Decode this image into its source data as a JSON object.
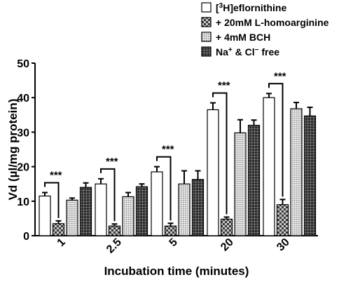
{
  "chart_data": {
    "type": "bar",
    "xlabel": "Incubation time (minutes)",
    "ylabel": "Vd (µl/mg protein)",
    "ylim": [
      0,
      50
    ],
    "yticks": [
      "0",
      "10",
      "20",
      "30",
      "40",
      "50"
    ],
    "categories": [
      "1",
      "2.5",
      "5",
      "20",
      "30"
    ],
    "significance_label": "***",
    "legend_position": "top-right",
    "series": [
      {
        "name": "[³H]eflornithine",
        "legend_parts": [
          "[",
          "3",
          "H]eflornithine"
        ],
        "pattern": "open",
        "values": [
          11.5,
          15.0,
          18.5,
          36.5,
          40.0
        ],
        "errors": [
          1.0,
          1.5,
          1.5,
          2.0,
          1.2
        ]
      },
      {
        "name": "+ 20mM L-homoarginine",
        "legend_parts": [
          "+ 20mM L-homoarginine"
        ],
        "pattern": "checker",
        "values": [
          3.5,
          2.8,
          2.8,
          4.8,
          9.0
        ],
        "errors": [
          0.8,
          0.6,
          0.8,
          0.6,
          1.5
        ]
      },
      {
        "name": "+ 4mM BCH",
        "legend_parts": [
          "+ 4mM BCH"
        ],
        "pattern": "dots",
        "values": [
          10.3,
          11.3,
          15.0,
          29.8,
          36.8
        ],
        "errors": [
          0.6,
          1.2,
          3.8,
          3.8,
          1.8
        ]
      },
      {
        "name": "Na⁺ & Cl⁻ free",
        "legend_parts": [
          "Na",
          "+",
          " & Cl",
          "−",
          " free"
        ],
        "pattern": "grid",
        "values": [
          14.0,
          14.2,
          16.3,
          32.0,
          34.7
        ],
        "errors": [
          1.3,
          0.8,
          2.5,
          1.5,
          2.5
        ]
      }
    ]
  }
}
